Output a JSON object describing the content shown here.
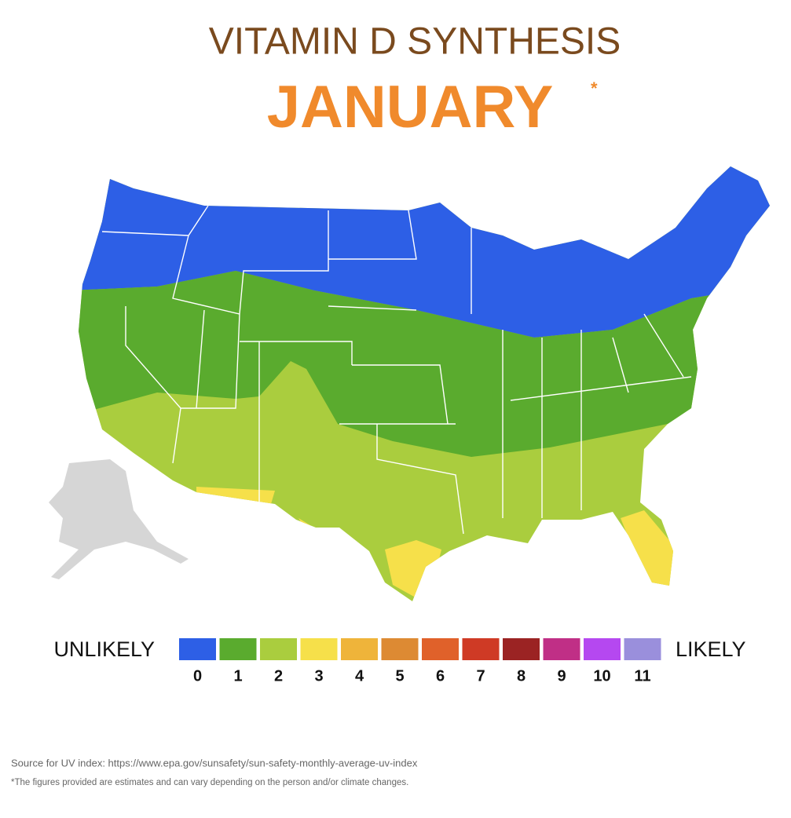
{
  "header": {
    "title": "VITAMIN D SYNTHESIS",
    "month": "JANUARY",
    "asterisk": "*"
  },
  "legend": {
    "low_label": "UNLIKELY",
    "high_label": "LIKELY",
    "items": [
      {
        "label": "0",
        "color": "#2d5fe6"
      },
      {
        "label": "1",
        "color": "#5aab2e"
      },
      {
        "label": "2",
        "color": "#aacd3e"
      },
      {
        "label": "3",
        "color": "#f6e04a"
      },
      {
        "label": "4",
        "color": "#efb43a"
      },
      {
        "label": "5",
        "color": "#dd8a33"
      },
      {
        "label": "6",
        "color": "#e0612a"
      },
      {
        "label": "7",
        "color": "#cf3a25"
      },
      {
        "label": "8",
        "color": "#9b2323"
      },
      {
        "label": "9",
        "color": "#c02f86"
      },
      {
        "label": "10",
        "color": "#b548f0"
      },
      {
        "label": "11",
        "color": "#9a8fdc"
      }
    ]
  },
  "footer": {
    "source": "Source for UV index: https://www.epa.gov/sunsafety/sun-safety-monthly-average-uv-index",
    "note": "*The figures provided are estimates and can vary depending on the person and/or climate changes."
  }
}
